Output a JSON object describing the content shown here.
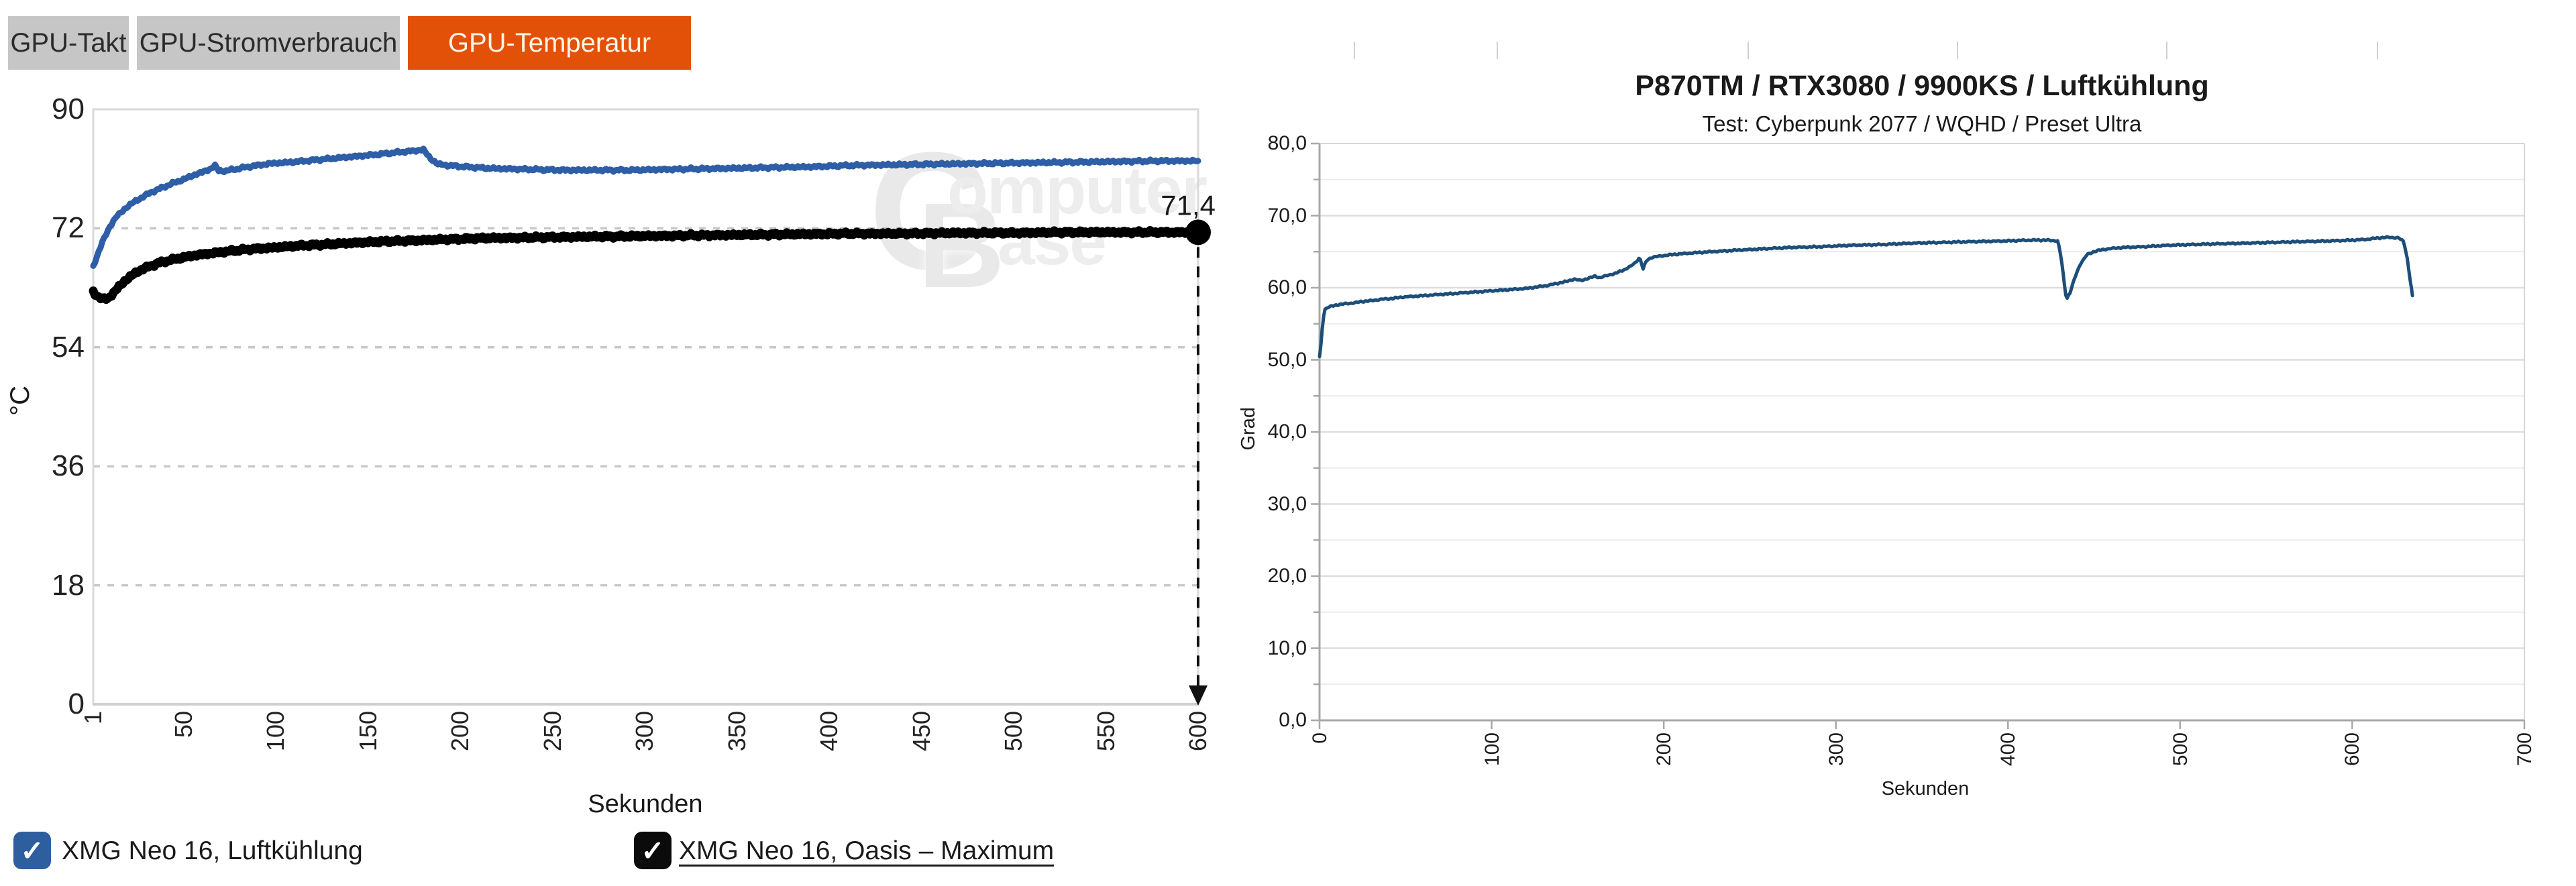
{
  "tabs": [
    {
      "label": "GPU-Takt",
      "active": false
    },
    {
      "label": "GPU-Stromverbrauch",
      "active": false
    },
    {
      "label": "GPU-Temperatur",
      "active": true
    }
  ],
  "accent_color": "#e35109",
  "watermark": {
    "letter1": "C",
    "rest1": "omputer",
    "letter2": "B",
    "rest2": "ase"
  },
  "legend": [
    {
      "label": "XMG Neo 16, Luftkühlung",
      "color": "#2d5f9e",
      "underline": false,
      "checked": true
    },
    {
      "label": "XMG Neo 16, Oasis – Maximum",
      "color": "#0b0b0b",
      "underline": true,
      "checked": true
    }
  ],
  "checkmark": "✓",
  "chart_data": [
    {
      "type": "line",
      "title": "",
      "xlabel": "Sekunden",
      "ylabel": "°C",
      "xlim": [
        1,
        600
      ],
      "ylim": [
        0,
        90
      ],
      "xticks": [
        1,
        50,
        100,
        150,
        200,
        250,
        300,
        350,
        400,
        450,
        500,
        550,
        600
      ],
      "yticks": [
        0,
        18,
        36,
        54,
        72,
        90
      ],
      "grid": "dashed-horizontal",
      "legend_position": "bottom",
      "series": [
        {
          "name": "XMG Neo 16, Luftkühlung",
          "color": "#2e5ea6",
          "width": 9,
          "jitter": 0.25,
          "points": [
            [
              1,
              66.2
            ],
            [
              3,
              67.8
            ],
            [
              6,
              69.9
            ],
            [
              10,
              72.3
            ],
            [
              14,
              73.9
            ],
            [
              18,
              74.9
            ],
            [
              22,
              75.8
            ],
            [
              27,
              76.6
            ],
            [
              32,
              77.4
            ],
            [
              38,
              78.1
            ],
            [
              44,
              78.8
            ],
            [
              50,
              79.4
            ],
            [
              56,
              80.1
            ],
            [
              61,
              80.6
            ],
            [
              64,
              80.9
            ],
            [
              67,
              81.5
            ],
            [
              69,
              80.7
            ],
            [
              73,
              80.7
            ],
            [
              79,
              81.0
            ],
            [
              87,
              81.4
            ],
            [
              97,
              81.8
            ],
            [
              108,
              82.0
            ],
            [
              120,
              82.3
            ],
            [
              132,
              82.6
            ],
            [
              144,
              82.9
            ],
            [
              156,
              83.2
            ],
            [
              166,
              83.5
            ],
            [
              174,
              83.7
            ],
            [
              180,
              83.9
            ],
            [
              184,
              82.5
            ],
            [
              188,
              81.7
            ],
            [
              194,
              81.5
            ],
            [
              203,
              81.3
            ],
            [
              214,
              81.1
            ],
            [
              226,
              81.0
            ],
            [
              240,
              80.9
            ],
            [
              256,
              80.8
            ],
            [
              274,
              80.8
            ],
            [
              292,
              80.8
            ],
            [
              310,
              80.9
            ],
            [
              330,
              81.0
            ],
            [
              350,
              81.1
            ],
            [
              370,
              81.2
            ],
            [
              390,
              81.3
            ],
            [
              410,
              81.5
            ],
            [
              430,
              81.6
            ],
            [
              455,
              81.7
            ],
            [
              480,
              81.8
            ],
            [
              505,
              81.9
            ],
            [
              530,
              82.0
            ],
            [
              555,
              82.1
            ],
            [
              580,
              82.2
            ],
            [
              600,
              82.2
            ]
          ]
        },
        {
          "name": "XMG Neo 16, Oasis – Maximum",
          "color": "#000000",
          "width": 13,
          "jitter": 0.3,
          "end_marker": true,
          "end_label": "71,4",
          "points": [
            [
              1,
              62.4
            ],
            [
              2,
              62.1
            ],
            [
              4,
              61.6
            ],
            [
              6,
              61.3
            ],
            [
              9,
              61.4
            ],
            [
              12,
              62.2
            ],
            [
              15,
              63.2
            ],
            [
              18,
              64.0
            ],
            [
              22,
              64.9
            ],
            [
              26,
              65.6
            ],
            [
              31,
              66.2
            ],
            [
              37,
              66.8
            ],
            [
              43,
              67.2
            ],
            [
              50,
              67.6
            ],
            [
              58,
              68.0
            ],
            [
              67,
              68.3
            ],
            [
              77,
              68.6
            ],
            [
              88,
              68.9
            ],
            [
              100,
              69.1
            ],
            [
              114,
              69.4
            ],
            [
              130,
              69.6
            ],
            [
              148,
              69.9
            ],
            [
              168,
              70.1
            ],
            [
              190,
              70.3
            ],
            [
              212,
              70.5
            ],
            [
              236,
              70.6
            ],
            [
              262,
              70.7
            ],
            [
              290,
              70.8
            ],
            [
              320,
              70.9
            ],
            [
              350,
              71.0
            ],
            [
              380,
              71.1
            ],
            [
              410,
              71.2
            ],
            [
              440,
              71.2
            ],
            [
              470,
              71.3
            ],
            [
              500,
              71.3
            ],
            [
              530,
              71.4
            ],
            [
              560,
              71.4
            ],
            [
              580,
              71.4
            ],
            [
              600,
              71.4
            ]
          ]
        }
      ]
    },
    {
      "type": "line",
      "title": "P870TM / RTX3080 / 9900KS / Luftkühlung",
      "subtitle": "Test: Cyberpunk 2077 / WQHD / Preset Ultra",
      "xlabel": "Sekunden",
      "ylabel": "Grad",
      "xlim": [
        0,
        700
      ],
      "ylim": [
        0,
        80
      ],
      "xticks": [
        0,
        100,
        200,
        300,
        400,
        500,
        600,
        700
      ],
      "yticks": [
        0,
        10,
        20,
        30,
        40,
        50,
        60,
        70,
        80
      ],
      "ytick_labels": [
        "0,0",
        "10,0",
        "20,0",
        "30,0",
        "40,0",
        "50,0",
        "60,0",
        "70,0",
        "80,0"
      ],
      "minor_step": 5,
      "grid": "solid-horizontal",
      "legend_position": "none",
      "series": [
        {
          "name": "P870TM / RTX3080 / 9900KS / Luftkühlung",
          "color": "#1d4e79",
          "width": 5,
          "jitter": 0.12,
          "points": [
            [
              0,
              50.4
            ],
            [
              1,
              52.5
            ],
            [
              2,
              55.6
            ],
            [
              3,
              57.0
            ],
            [
              5,
              57.3
            ],
            [
              8,
              57.5
            ],
            [
              12,
              57.7
            ],
            [
              16,
              57.8
            ],
            [
              20,
              57.9
            ],
            [
              25,
              58.1
            ],
            [
              30,
              58.2
            ],
            [
              36,
              58.4
            ],
            [
              42,
              58.5
            ],
            [
              48,
              58.7
            ],
            [
              54,
              58.8
            ],
            [
              60,
              58.9
            ],
            [
              66,
              59.0
            ],
            [
              72,
              59.1
            ],
            [
              78,
              59.2
            ],
            [
              84,
              59.3
            ],
            [
              90,
              59.4
            ],
            [
              96,
              59.5
            ],
            [
              102,
              59.6
            ],
            [
              108,
              59.7
            ],
            [
              114,
              59.8
            ],
            [
              120,
              59.9
            ],
            [
              126,
              60.1
            ],
            [
              132,
              60.3
            ],
            [
              138,
              60.6
            ],
            [
              144,
              60.9
            ],
            [
              148,
              61.2
            ],
            [
              152,
              61.0
            ],
            [
              156,
              61.3
            ],
            [
              160,
              61.6
            ],
            [
              163,
              61.4
            ],
            [
              167,
              61.7
            ],
            [
              172,
              62.0
            ],
            [
              177,
              62.5
            ],
            [
              181,
              63.0
            ],
            [
              184,
              63.6
            ],
            [
              186,
              64.2
            ],
            [
              188,
              62.6
            ],
            [
              190,
              63.8
            ],
            [
              193,
              64.2
            ],
            [
              198,
              64.4
            ],
            [
              205,
              64.6
            ],
            [
              215,
              64.8
            ],
            [
              228,
              65.0
            ],
            [
              242,
              65.2
            ],
            [
              258,
              65.4
            ],
            [
              275,
              65.6
            ],
            [
              292,
              65.7
            ],
            [
              310,
              65.9
            ],
            [
              328,
              66.0
            ],
            [
              346,
              66.2
            ],
            [
              364,
              66.3
            ],
            [
              382,
              66.4
            ],
            [
              400,
              66.5
            ],
            [
              412,
              66.6
            ],
            [
              422,
              66.6
            ],
            [
              429,
              66.5
            ],
            [
              431,
              64.0
            ],
            [
              433,
              60.0
            ],
            [
              434,
              58.4
            ],
            [
              436,
              59.3
            ],
            [
              439,
              61.5
            ],
            [
              442,
              63.3
            ],
            [
              446,
              64.6
            ],
            [
              451,
              65.1
            ],
            [
              458,
              65.4
            ],
            [
              468,
              65.6
            ],
            [
              480,
              65.7
            ],
            [
              494,
              65.9
            ],
            [
              508,
              66.0
            ],
            [
              524,
              66.1
            ],
            [
              540,
              66.2
            ],
            [
              556,
              66.3
            ],
            [
              572,
              66.4
            ],
            [
              588,
              66.5
            ],
            [
              600,
              66.6
            ],
            [
              608,
              66.7
            ],
            [
              615,
              66.9
            ],
            [
              621,
              67.0
            ],
            [
              627,
              66.9
            ],
            [
              630,
              66.4
            ],
            [
              632,
              64.0
            ],
            [
              634,
              60.5
            ],
            [
              635,
              58.9
            ]
          ]
        }
      ]
    }
  ]
}
